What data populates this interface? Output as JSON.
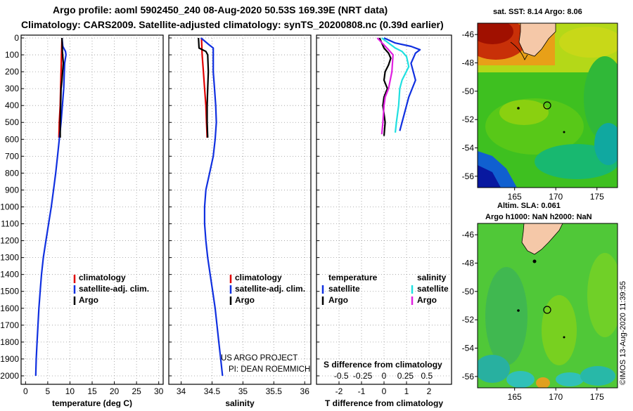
{
  "header": {
    "line1": "Argo profile: aoml 5902450_240 08-Aug-2020 50.53S 169.39E (NRT data)",
    "line2": "Climatology: CARS2009. Satellite-adjusted climatology: synTS_20200808.nc (0.39d earlier)"
  },
  "colors": {
    "climatology": "#e00000",
    "satellite_adj": "#1030e0",
    "argo": "#000000",
    "sat_salinity": "#20e0e0",
    "argo_salinity": "#e020e0",
    "land": "#f5c8a8"
  },
  "chart_data": [
    {
      "type": "line",
      "name": "temperature",
      "xlabel": "temperature (deg C)",
      "xlim": [
        -1,
        31
      ],
      "xticks": [
        0,
        5,
        10,
        15,
        20,
        25,
        30
      ],
      "ylim": [
        0,
        2050
      ],
      "yticks": [
        0,
        100,
        200,
        300,
        400,
        500,
        600,
        700,
        800,
        900,
        1000,
        1100,
        1200,
        1300,
        1400,
        1500,
        1600,
        1700,
        1800,
        1900,
        2000
      ],
      "legend": [
        "climatology",
        "satellite-adj. clim.",
        "Argo"
      ],
      "series": [
        {
          "name": "climatology",
          "color": "#e00000",
          "points": [
            [
              8.2,
              0
            ],
            [
              8.1,
              100
            ],
            [
              8.0,
              200
            ],
            [
              7.9,
              300
            ],
            [
              7.8,
              400
            ],
            [
              7.6,
              500
            ],
            [
              7.5,
              590
            ]
          ]
        },
        {
          "name": "satellite-adj. clim.",
          "color": "#1030e0",
          "points": [
            [
              8.2,
              0
            ],
            [
              8.4,
              50
            ],
            [
              9.0,
              80
            ],
            [
              9.1,
              100
            ],
            [
              8.8,
              150
            ],
            [
              8.6,
              300
            ],
            [
              8.3,
              400
            ],
            [
              8.0,
              500
            ],
            [
              7.6,
              600
            ],
            [
              7.2,
              700
            ],
            [
              6.8,
              800
            ],
            [
              6.3,
              900
            ],
            [
              5.8,
              1000
            ],
            [
              5.2,
              1100
            ],
            [
              4.6,
              1200
            ],
            [
              4.0,
              1300
            ],
            [
              3.6,
              1400
            ],
            [
              3.3,
              1500
            ],
            [
              3.0,
              1600
            ],
            [
              2.8,
              1700
            ],
            [
              2.6,
              1800
            ],
            [
              2.4,
              1900
            ],
            [
              2.3,
              2000
            ]
          ]
        },
        {
          "name": "Argo",
          "color": "#000000",
          "points": [
            [
              8.2,
              0
            ],
            [
              8.3,
              80
            ],
            [
              8.5,
              150
            ],
            [
              8.2,
              250
            ],
            [
              8.0,
              300
            ],
            [
              7.9,
              400
            ],
            [
              7.8,
              500
            ],
            [
              7.8,
              590
            ]
          ]
        }
      ]
    },
    {
      "type": "line",
      "name": "salinity",
      "xlabel": "salinity",
      "xlim": [
        33.8,
        36.1
      ],
      "xticks": [
        34,
        34.5,
        35,
        35.5,
        36
      ],
      "ylim": [
        0,
        2050
      ],
      "legend": [
        "climatology",
        "satellite-adj. clim.",
        "Argo"
      ],
      "series": [
        {
          "name": "climatology",
          "color": "#e00000",
          "points": [
            [
              34.33,
              0
            ],
            [
              34.34,
              100
            ],
            [
              34.36,
              200
            ],
            [
              34.38,
              300
            ],
            [
              34.4,
              400
            ],
            [
              34.41,
              500
            ],
            [
              34.42,
              590
            ]
          ]
        },
        {
          "name": "satellite-adj. clim.",
          "color": "#1030e0",
          "points": [
            [
              34.32,
              0
            ],
            [
              34.45,
              40
            ],
            [
              34.52,
              60
            ],
            [
              34.52,
              100
            ],
            [
              34.52,
              200
            ],
            [
              34.54,
              300
            ],
            [
              34.56,
              400
            ],
            [
              34.57,
              500
            ],
            [
              34.55,
              600
            ],
            [
              34.52,
              700
            ],
            [
              34.46,
              800
            ],
            [
              34.4,
              900
            ],
            [
              34.38,
              1000
            ],
            [
              34.38,
              1100
            ],
            [
              34.4,
              1200
            ],
            [
              34.43,
              1300
            ],
            [
              34.47,
              1400
            ],
            [
              34.51,
              1500
            ],
            [
              34.55,
              1600
            ],
            [
              34.58,
              1700
            ],
            [
              34.61,
              1800
            ],
            [
              34.64,
              1900
            ],
            [
              34.67,
              2000
            ]
          ]
        },
        {
          "name": "Argo",
          "color": "#000000",
          "points": [
            [
              34.28,
              0
            ],
            [
              34.29,
              60
            ],
            [
              34.4,
              80
            ],
            [
              34.43,
              100
            ],
            [
              34.44,
              200
            ],
            [
              34.43,
              300
            ],
            [
              34.42,
              400
            ],
            [
              34.42,
              500
            ],
            [
              34.43,
              590
            ]
          ]
        }
      ]
    },
    {
      "type": "line",
      "name": "differences",
      "xlabel": "T difference from climatology",
      "secondary_xlabel": "S difference from climatology",
      "xlim": [
        -3,
        3
      ],
      "xticks": [
        -2,
        -1,
        0,
        1,
        2
      ],
      "secondary_ticks": [
        "-0.5",
        "-0.25",
        "0",
        "0.25",
        "0.5"
      ],
      "secondary_tick_values": [
        -0.5,
        -0.25,
        0,
        0.25,
        0.5
      ],
      "ylim": [
        0,
        2050
      ],
      "legend_temperature_title": "temperature",
      "legend_salinity_title": "salinity",
      "legend_temperature": [
        "satellite",
        "Argo"
      ],
      "legend_salinity": [
        "satellite",
        "Argo"
      ],
      "series": [
        {
          "name": "T satellite",
          "color": "#1030e0",
          "points": [
            [
              0.0,
              0
            ],
            [
              0.5,
              30
            ],
            [
              1.2,
              50
            ],
            [
              1.6,
              70
            ],
            [
              1.4,
              90
            ],
            [
              1.2,
              150
            ],
            [
              1.4,
              250
            ],
            [
              1.1,
              350
            ],
            [
              0.9,
              450
            ],
            [
              0.8,
              500
            ],
            [
              0.7,
              550
            ]
          ]
        },
        {
          "name": "T Argo",
          "color": "#000000",
          "points": [
            [
              -0.2,
              0
            ],
            [
              0.0,
              60
            ],
            [
              0.2,
              90
            ],
            [
              0.3,
              120
            ],
            [
              0.2,
              160
            ],
            [
              0.05,
              200
            ],
            [
              0.0,
              250
            ],
            [
              0.15,
              300
            ],
            [
              0.0,
              350
            ],
            [
              -0.05,
              400
            ],
            [
              0.0,
              450
            ],
            [
              0.05,
              500
            ],
            [
              0.0,
              580
            ]
          ]
        },
        {
          "name": "S satellite",
          "color": "#20e0e0",
          "points": [
            [
              -0.1,
              0
            ],
            [
              0.5,
              60
            ],
            [
              0.8,
              80
            ],
            [
              1.0,
              110
            ],
            [
              1.1,
              170
            ],
            [
              0.8,
              250
            ],
            [
              0.7,
              300
            ],
            [
              0.65,
              400
            ],
            [
              0.6,
              450
            ],
            [
              0.55,
              500
            ],
            [
              0.5,
              560
            ]
          ]
        },
        {
          "name": "S Argo",
          "color": "#e020e0",
          "points": [
            [
              -0.3,
              0
            ],
            [
              0.2,
              70
            ],
            [
              0.4,
              100
            ],
            [
              0.35,
              200
            ],
            [
              0.2,
              300
            ],
            [
              0.05,
              350
            ],
            [
              0.0,
              400
            ],
            [
              -0.05,
              500
            ],
            [
              -0.1,
              570
            ]
          ]
        }
      ]
    },
    {
      "type": "heatmap",
      "name": "sst_map",
      "title": "sat. SST: 8.14 Argo: 8.06",
      "xticks": [
        165,
        170,
        175
      ],
      "yticks": [
        -46,
        -48,
        -50,
        -52,
        -54,
        -56
      ],
      "lon_range": [
        160.5,
        177.5
      ],
      "lat_range": [
        -56.8,
        -45.2
      ],
      "profile_position": [
        169.39,
        -50.53
      ]
    },
    {
      "type": "heatmap",
      "name": "sla_map",
      "title_line1": "Altim. SLA: 0.061",
      "title_line2": "Argo h1000: NaN h2000: NaN",
      "xticks": [
        165,
        170,
        175
      ],
      "yticks": [
        -46,
        -48,
        -50,
        -52,
        -54,
        -56
      ],
      "lon_range": [
        160.5,
        177.5
      ],
      "lat_range": [
        -56.8,
        -45.2
      ],
      "profile_position": [
        169.39,
        -50.53
      ]
    }
  ],
  "credits": {
    "project": "US ARGO PROJECT",
    "pi": "PI: DEAN ROEMMICH",
    "imos": "©IMOS 13-Aug-2020 11:39:55"
  }
}
